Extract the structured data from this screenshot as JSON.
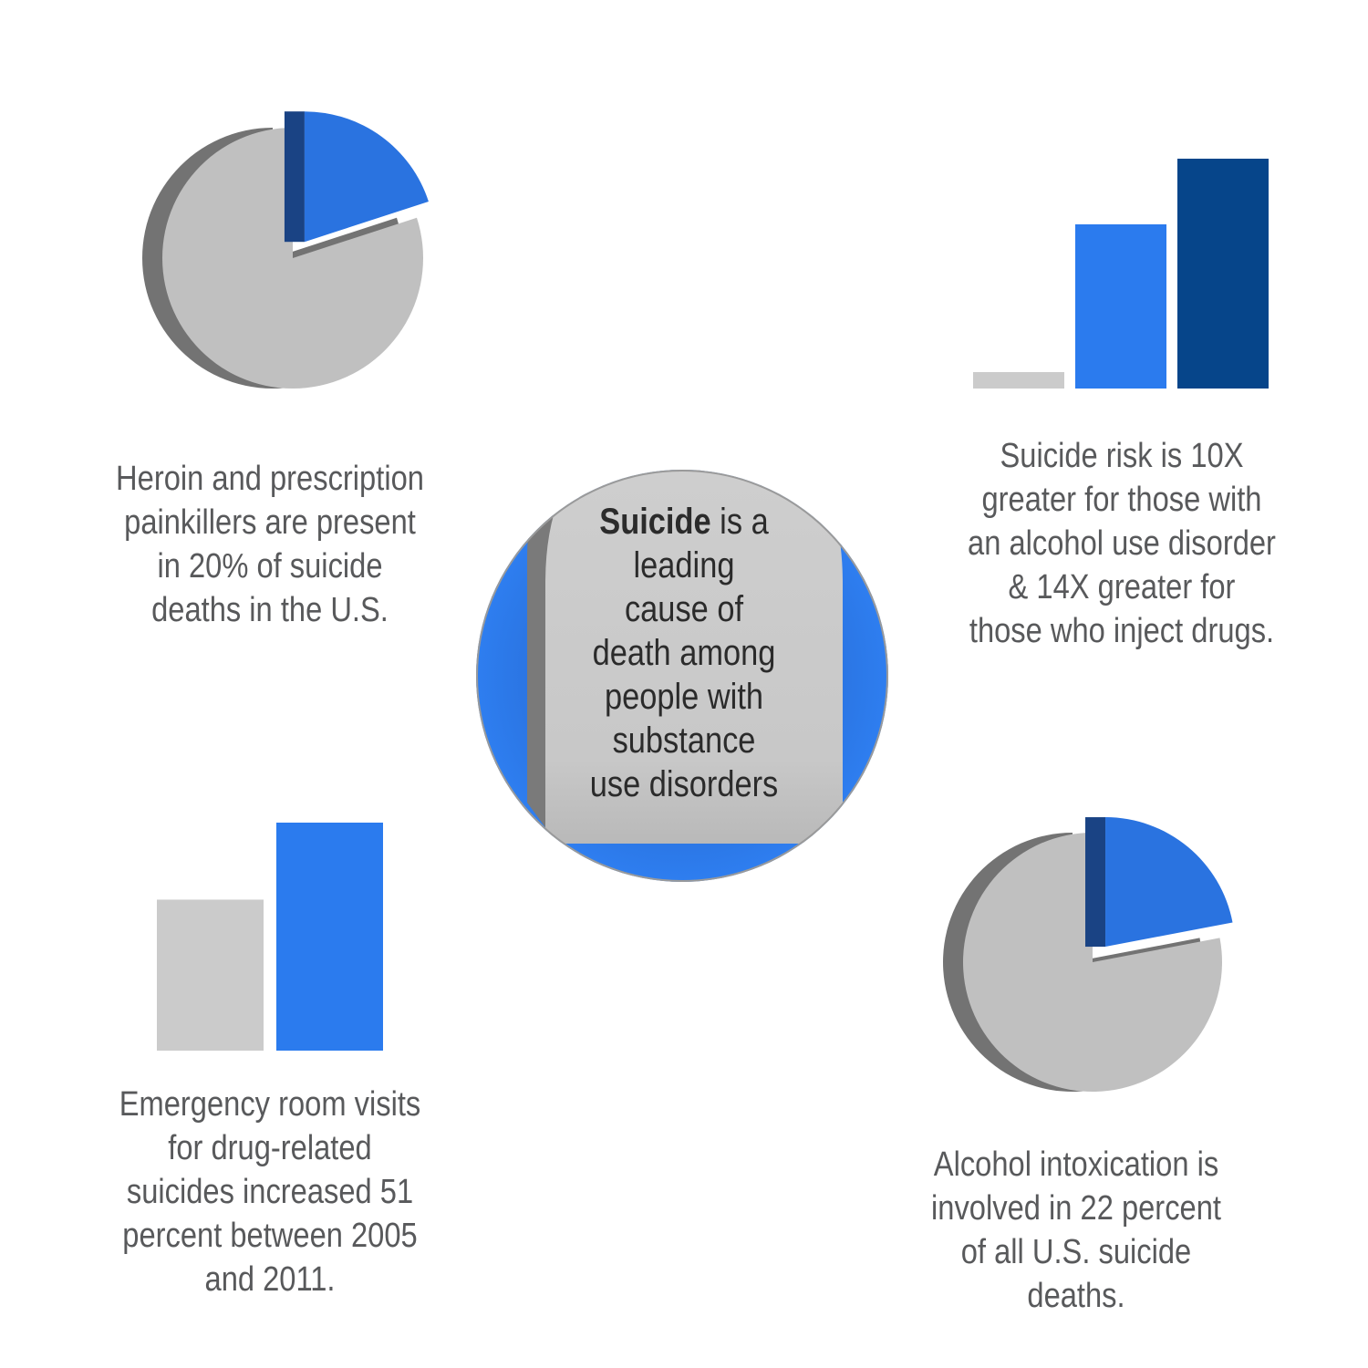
{
  "colors": {
    "gray_face": "#c0c0c0",
    "gray_side": "#737373",
    "blue_face": "#2a73e0",
    "blue_dark": "#1a4384",
    "bar_gray": "#cbcbcb",
    "bar_blue": "#2b7bee",
    "bar_navy": "#06458a",
    "text": "#58595b"
  },
  "center": {
    "lines": [
      {
        "bold": "Suicide",
        "rest": " is a"
      },
      {
        "bold": "",
        "rest": "leading"
      },
      {
        "bold": "",
        "rest": "cause of"
      },
      {
        "bold": "",
        "rest": "death among"
      },
      {
        "bold": "",
        "rest": "people with"
      },
      {
        "bold": "",
        "rest": "substance"
      },
      {
        "bold": "",
        "rest": "use disorders"
      }
    ]
  },
  "captions": {
    "top_left": [
      "Heroin and prescription",
      "painkillers are present",
      "in 20% of suicide",
      "deaths in the U.S."
    ],
    "top_right": [
      "Suicide risk is 10X",
      "greater for those with",
      "an alcohol use disorder",
      "& 14X greater for",
      "those who inject drugs."
    ],
    "bottom_left": [
      "Emergency room visits",
      "for drug-related",
      "suicides increased 51",
      "percent between 2005",
      "and 2011."
    ],
    "bottom_right": [
      "Alcohol intoxication is",
      "involved in 22 percent",
      "of all U.S. suicide",
      "deaths."
    ]
  },
  "chart_data": [
    {
      "type": "pie",
      "id": "pie-top-left",
      "values": [
        20,
        80
      ],
      "highlight_index": 0
    },
    {
      "type": "bar",
      "id": "bars-top-right",
      "values": [
        1,
        10,
        14
      ],
      "ylim": [
        0,
        14
      ]
    },
    {
      "type": "bar",
      "id": "bars-bottom-left",
      "values": [
        100,
        151
      ],
      "ylim": [
        0,
        151
      ]
    },
    {
      "type": "pie",
      "id": "pie-bottom-right",
      "values": [
        22,
        78
      ],
      "highlight_index": 0
    }
  ]
}
